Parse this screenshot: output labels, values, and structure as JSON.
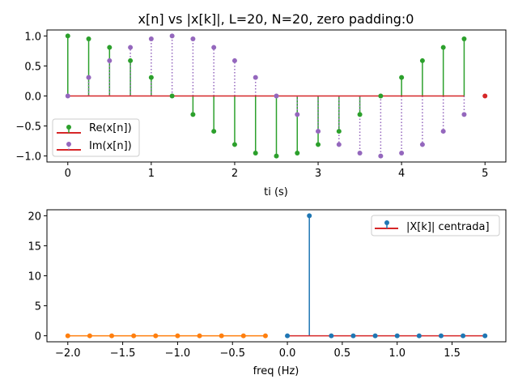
{
  "colors": {
    "re": "#2ca02c",
    "im": "#9467bd",
    "baseline": "#d62728",
    "pos": "#1f77b4",
    "neg": "#ff7f0e",
    "extra": "#d62728"
  },
  "chart_data": [
    {
      "type": "stem",
      "title": "x[n] vs |x[k]|, L=20, N=20, zero padding:0",
      "xlabel": "ti (s)",
      "ylabel": "",
      "xlim": [
        -0.25,
        5.25
      ],
      "ylim": [
        -1.1,
        1.1
      ],
      "xticks": [
        "0",
        "1",
        "2",
        "3",
        "4",
        "5"
      ],
      "xtick_values": [
        0,
        1,
        2,
        3,
        4,
        5
      ],
      "yticks": [
        "1.0",
        "0.5",
        "0.0",
        "−0.5",
        "−1.0"
      ],
      "ytick_values": [
        1,
        0.5,
        0,
        -0.5,
        -1
      ],
      "legend_position": "lower-left",
      "x": [
        0,
        0.25,
        0.5,
        0.75,
        1,
        1.25,
        1.5,
        1.75,
        2,
        2.25,
        2.5,
        2.75,
        3,
        3.25,
        3.5,
        3.75,
        4,
        4.25,
        4.5,
        4.75
      ],
      "series": [
        {
          "name": "Re(x[n])",
          "style": "solid",
          "values": [
            1,
            0.951,
            0.809,
            0.588,
            0.309,
            0,
            -0.309,
            -0.588,
            -0.809,
            -0.951,
            -1,
            -0.951,
            -0.809,
            -0.588,
            -0.309,
            0,
            0.309,
            0.588,
            0.809,
            0.951
          ]
        },
        {
          "name": "Im(x[n])",
          "style": "dotted",
          "values": [
            0,
            0.309,
            0.588,
            0.809,
            0.951,
            1,
            0.951,
            0.809,
            0.588,
            0.309,
            0,
            -0.309,
            -0.588,
            -0.809,
            -0.951,
            -1,
            -0.951,
            -0.809,
            -0.588,
            -0.309
          ]
        }
      ],
      "extra_point": {
        "x": 5,
        "y": 0
      }
    },
    {
      "type": "stem",
      "title": "",
      "xlabel": "freq (Hz)",
      "ylabel": "",
      "xlim": [
        -2.19,
        1.99
      ],
      "ylim": [
        -1,
        21
      ],
      "xticks": [
        "−2.0",
        "−1.5",
        "−1.0",
        "−0.5",
        "0.0",
        "0.5",
        "1.0",
        "1.5"
      ],
      "xtick_values": [
        -2,
        -1.5,
        -1,
        -0.5,
        0,
        0.5,
        1,
        1.5
      ],
      "yticks": [
        "0",
        "5",
        "10",
        "15",
        "20"
      ],
      "ytick_values": [
        0,
        5,
        10,
        15,
        20
      ],
      "legend_position": "upper-right",
      "series": [
        {
          "name": "|X[k]| centrada]",
          "x": [
            0,
            0.2,
            0.4,
            0.6,
            0.8,
            1.0,
            1.2,
            1.4,
            1.6,
            1.8
          ],
          "values": [
            0,
            20,
            0,
            0,
            0,
            0,
            0,
            0,
            0,
            0
          ]
        },
        {
          "name": "",
          "x": [
            -2,
            -1.8,
            -1.6,
            -1.4,
            -1.2,
            -1,
            -0.8,
            -0.6,
            -0.4,
            -0.2
          ],
          "values": [
            0,
            0,
            0,
            0,
            0,
            0,
            0,
            0,
            0,
            0
          ]
        }
      ]
    }
  ]
}
